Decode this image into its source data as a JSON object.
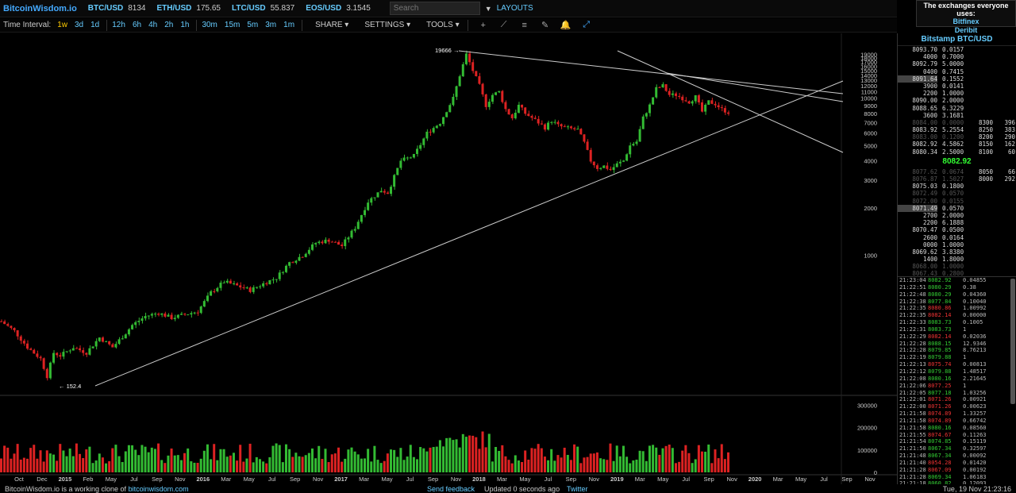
{
  "topbar": {
    "brand": "BitcoinWisdom.io",
    "tickers": [
      {
        "symbol": "BTC/USD",
        "value": "8134"
      },
      {
        "symbol": "ETH/USD",
        "value": "175.65"
      },
      {
        "symbol": "LTC/USD",
        "value": "55.837"
      },
      {
        "symbol": "EOS/USD",
        "value": "3.1545"
      }
    ],
    "search_placeholder": "Search",
    "dropdown_glyph": "▼",
    "layouts": "LAYOUTS"
  },
  "exchanges": {
    "heading": "The exchanges everyone uses:",
    "items": [
      "Bitfinex",
      "Deribit"
    ]
  },
  "toolbar": {
    "label": "Time Interval:",
    "intervals": [
      "1w",
      "3d",
      "1d",
      "12h",
      "6h",
      "4h",
      "2h",
      "1h",
      "30m",
      "15m",
      "5m",
      "3m",
      "1m"
    ],
    "active_interval": "1w",
    "menus": [
      "SHARE ▾",
      "SETTINGS ▾",
      "TOOLS ▾"
    ],
    "tools": [
      "+",
      "⟋",
      "≡",
      "✎",
      "🔔",
      "⤢"
    ]
  },
  "chart_data": {
    "type": "candlestick",
    "price_axis_labels": [
      "19000",
      "18000",
      "17000",
      "16000",
      "15000",
      "14000",
      "13000",
      "12000",
      "11000",
      "10000",
      "9000",
      "8000",
      "7000",
      "6000",
      "5000",
      "4000",
      "3000",
      "2000",
      "1000"
    ],
    "volume_axis_labels": [
      "300000",
      "200000",
      "100000",
      "0"
    ],
    "x_tick_labels": [
      "Oct",
      "Dec",
      "2015",
      "Feb",
      "May",
      "Jul",
      "Sep",
      "Nov",
      "2016",
      "Mar",
      "May",
      "Jul",
      "Sep",
      "Nov",
      "2017",
      "Mar",
      "May",
      "Jul",
      "Sep",
      "Nov",
      "2018",
      "Mar",
      "May",
      "Jul",
      "Sep",
      "Nov",
      "2019",
      "Mar",
      "May",
      "Jul",
      "Sep",
      "Nov",
      "2020",
      "Mar",
      "May",
      "Jul",
      "Sep",
      "Nov"
    ],
    "annotations": {
      "high": "19666",
      "low": "152.4"
    },
    "price_series_approx": [
      [
        0,
        380
      ],
      [
        4,
        330
      ],
      [
        8,
        260
      ],
      [
        12,
        220
      ],
      [
        14,
        170
      ],
      [
        16,
        240
      ],
      [
        18,
        230
      ],
      [
        22,
        260
      ],
      [
        26,
        240
      ],
      [
        30,
        300
      ],
      [
        34,
        260
      ],
      [
        38,
        320
      ],
      [
        40,
        360
      ],
      [
        44,
        410
      ],
      [
        48,
        430
      ],
      [
        52,
        400
      ],
      [
        56,
        420
      ],
      [
        60,
        440
      ],
      [
        64,
        580
      ],
      [
        68,
        680
      ],
      [
        72,
        640
      ],
      [
        76,
        600
      ],
      [
        80,
        660
      ],
      [
        84,
        720
      ],
      [
        88,
        900
      ],
      [
        92,
        1000
      ],
      [
        96,
        1200
      ],
      [
        100,
        1250
      ],
      [
        104,
        1150
      ],
      [
        108,
        1500
      ],
      [
        112,
        2200
      ],
      [
        116,
        2600
      ],
      [
        118,
        2500
      ],
      [
        122,
        4000
      ],
      [
        126,
        4300
      ],
      [
        130,
        6000
      ],
      [
        134,
        7000
      ],
      [
        138,
        10000
      ],
      [
        140,
        14000
      ],
      [
        142,
        19000
      ],
      [
        144,
        15000
      ],
      [
        146,
        12000
      ],
      [
        148,
        9000
      ],
      [
        150,
        10500
      ],
      [
        152,
        11000
      ],
      [
        154,
        8500
      ],
      [
        156,
        7500
      ],
      [
        158,
        9000
      ],
      [
        160,
        8000
      ],
      [
        162,
        7500
      ],
      [
        164,
        7000
      ],
      [
        166,
        6500
      ],
      [
        168,
        7200
      ],
      [
        170,
        6700
      ],
      [
        172,
        6500
      ],
      [
        174,
        6400
      ],
      [
        176,
        6300
      ],
      [
        178,
        5200
      ],
      [
        180,
        4000
      ],
      [
        182,
        3600
      ],
      [
        184,
        3700
      ],
      [
        186,
        3500
      ],
      [
        188,
        3800
      ],
      [
        190,
        4000
      ],
      [
        192,
        5000
      ],
      [
        194,
        5300
      ],
      [
        196,
        7500
      ],
      [
        198,
        9000
      ],
      [
        200,
        11500
      ],
      [
        202,
        12000
      ],
      [
        204,
        10500
      ],
      [
        206,
        10500
      ],
      [
        208,
        10000
      ],
      [
        210,
        9500
      ],
      [
        212,
        10200
      ],
      [
        214,
        8200
      ],
      [
        216,
        9500
      ],
      [
        218,
        9200
      ],
      [
        220,
        8500
      ],
      [
        222,
        8134
      ]
    ]
  },
  "orderbook": {
    "title": "Bitstamp BTC/USD",
    "asks": [
      [
        "8093.70",
        "0.0157"
      ],
      [
        "4000",
        "0.7000"
      ],
      [
        "8092.79",
        "5.0000"
      ],
      [
        "0400",
        "0.7415"
      ],
      [
        "8091.64",
        "0.1552"
      ],
      [
        "3900",
        "0.0141"
      ],
      [
        "2200",
        "1.0000"
      ],
      [
        "8090.00",
        "2.0000"
      ],
      [
        "8088.65",
        "6.3229"
      ],
      [
        "3600",
        "3.1681"
      ],
      [
        "8084.00",
        "0.0000"
      ],
      [
        "8083.92",
        "5.2554"
      ],
      [
        "8083.00",
        "0.1200"
      ],
      [
        "8082.92",
        "4.5862"
      ],
      [
        "8080.34",
        "2.5000"
      ]
    ],
    "depth_asks": [
      [
        "8300",
        "396"
      ],
      [
        "8250",
        "383"
      ],
      [
        "8200",
        "290"
      ],
      [
        "8150",
        "162"
      ],
      [
        "8100",
        "60"
      ]
    ],
    "mid": "8082.92",
    "bids": [
      [
        "8077.62",
        "0.0674"
      ],
      [
        "8076.87",
        "1.5027"
      ],
      [
        "8075.03",
        "0.1800"
      ],
      [
        "8072.49",
        "0.0570"
      ],
      [
        "8072.00",
        "0.0155"
      ],
      [
        "8071.49",
        "0.0570"
      ],
      [
        "2700",
        "2.0000"
      ],
      [
        "2200",
        "6.1888"
      ],
      [
        "8070.47",
        "0.0500"
      ],
      [
        "2600",
        "0.0164"
      ],
      [
        "0000",
        "1.0000"
      ],
      [
        "8069.62",
        "3.8380"
      ],
      [
        "1400",
        "1.8000"
      ],
      [
        "8068.00",
        "1.0000"
      ],
      [
        "8067.43",
        "0.2800"
      ]
    ],
    "depth_bids": [
      [
        "8050",
        "66"
      ],
      [
        "8000",
        "292"
      ]
    ]
  },
  "trades": [
    [
      "21:23:04",
      "8082.92",
      "0.04855",
      "up"
    ],
    [
      "21:22:51",
      "8080.29",
      "0.38",
      "up"
    ],
    [
      "21:22:48",
      "8080.29",
      "0.04360",
      "up"
    ],
    [
      "21:22:38",
      "8077.84",
      "0.10040",
      "up"
    ],
    [
      "21:22:35",
      "8080.86",
      "1.00992",
      "dn"
    ],
    [
      "21:22:35",
      "8082.14",
      "0.00000",
      "dn"
    ],
    [
      "21:22:33",
      "8083.73",
      "0.1005",
      "up"
    ],
    [
      "21:22:31",
      "8083.73",
      "1",
      "up"
    ],
    [
      "21:22:29",
      "8082.14",
      "0.02036",
      "dn"
    ],
    [
      "21:22:28",
      "8088.15",
      "12.9346",
      "up"
    ],
    [
      "21:22:28",
      "8079.85",
      "8.76213",
      "up"
    ],
    [
      "21:22:19",
      "8079.88",
      "1",
      "up"
    ],
    [
      "21:22:13",
      "8075.74",
      "0.00813",
      "dn"
    ],
    [
      "21:22:12",
      "8079.88",
      "1.48517",
      "up"
    ],
    [
      "21:22:08",
      "8080.16",
      "2.21645",
      "up"
    ],
    [
      "21:22:06",
      "8077.25",
      "1",
      "dn"
    ],
    [
      "21:22:05",
      "8077.18",
      "1.03256",
      "up"
    ],
    [
      "21:22:01",
      "8071.26",
      "0.00921",
      "dn"
    ],
    [
      "21:22:00",
      "8071.26",
      "0.00623",
      "dn"
    ],
    [
      "21:21:58",
      "8074.89",
      "1.33257",
      "dn"
    ],
    [
      "21:21:58",
      "8074.89",
      "0.66742",
      "dn"
    ],
    [
      "21:21:58",
      "8080.16",
      "0.08560",
      "up"
    ],
    [
      "21:21:55",
      "8074.67",
      "0.11263",
      "dn"
    ],
    [
      "21:21:54",
      "8074.85",
      "0.15119",
      "up"
    ],
    [
      "21:21:50",
      "8067.34",
      "0.32597",
      "up"
    ],
    [
      "21:21:48",
      "8067.34",
      "0.00092",
      "up"
    ],
    [
      "21:21:40",
      "8054.28",
      "0.01420",
      "dn"
    ],
    [
      "21:21:28",
      "8067.09",
      "0.00192",
      "dn"
    ],
    [
      "21:21:28",
      "8069.34",
      "1.06183",
      "up"
    ],
    [
      "21:21:18",
      "8060.82",
      "0.12093",
      "up"
    ]
  ],
  "footer": {
    "left_text": "BitcoinWisdom.io is a working clone of ",
    "left_link": "bitcoinwisdom.com",
    "feedback": "Send feedback",
    "updated": "Updated 0 seconds ago",
    "twitter": "Twitter",
    "datetime": "Tue, 19 Nov 21:23:16"
  },
  "colors": {
    "up": "#33bb33",
    "down": "#dd2222",
    "accent": "#66ccff",
    "trend": "#cccccc"
  }
}
